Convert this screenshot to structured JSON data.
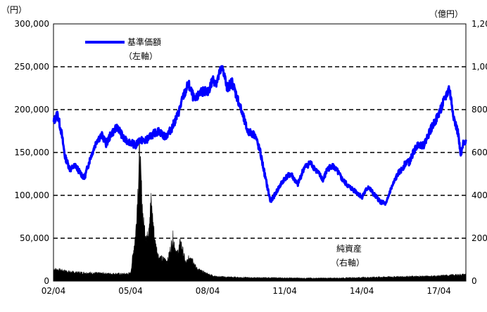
{
  "chart_data": {
    "type": "line",
    "left_unit": "（円）",
    "right_unit": "（億円）",
    "left_ylim": [
      0,
      300000
    ],
    "right_ylim": [
      0,
      1200
    ],
    "left_ticks": [
      {
        "v": 300000,
        "label": "300,000"
      },
      {
        "v": 250000,
        "label": "250,000"
      },
      {
        "v": 200000,
        "label": "200,000"
      },
      {
        "v": 150000,
        "label": "150,000"
      },
      {
        "v": 100000,
        "label": "100,000"
      },
      {
        "v": 50000,
        "label": "50,000"
      },
      {
        "v": 0,
        "label": "0"
      }
    ],
    "right_ticks": [
      {
        "v": 1200,
        "label": "1,200"
      },
      {
        "v": 1000,
        "label": "1,000"
      },
      {
        "v": 800,
        "label": "800"
      },
      {
        "v": 600,
        "label": "600"
      },
      {
        "v": 400,
        "label": "400"
      },
      {
        "v": 200,
        "label": "200"
      },
      {
        "v": 0,
        "label": "0"
      }
    ],
    "x_ticks": [
      {
        "t": 2002.25,
        "label": "02/04"
      },
      {
        "t": 2005.25,
        "label": "05/04"
      },
      {
        "t": 2008.25,
        "label": "08/04"
      },
      {
        "t": 2011.25,
        "label": "11/04"
      },
      {
        "t": 2014.25,
        "label": "14/04"
      },
      {
        "t": 2017.25,
        "label": "17/04"
      }
    ],
    "xlim": [
      2002.25,
      2018.3
    ],
    "grid": "horizontal dashed",
    "series": [
      {
        "name": "基準価額",
        "axis": "left",
        "color": "#0000ff",
        "x": [
          2002.25,
          2002.4,
          2002.55,
          2002.7,
          2002.9,
          2003.1,
          2003.25,
          2003.45,
          2003.7,
          2003.95,
          2004.15,
          2004.3,
          2004.5,
          2004.75,
          2005.0,
          2005.25,
          2005.45,
          2005.6,
          2005.8,
          2006.0,
          2006.15,
          2006.35,
          2006.6,
          2006.85,
          2007.1,
          2007.3,
          2007.5,
          2007.75,
          2008.0,
          2008.25,
          2008.45,
          2008.6,
          2008.75,
          2008.85,
          2009.0,
          2009.2,
          2009.5,
          2009.8,
          2010.1,
          2010.3,
          2010.5,
          2010.7,
          2011.0,
          2011.25,
          2011.5,
          2011.75,
          2012.0,
          2012.25,
          2012.5,
          2012.75,
          2012.9,
          2013.1,
          2013.3,
          2013.5,
          2013.75,
          2014.0,
          2014.25,
          2014.5,
          2014.75,
          2015.0,
          2015.2,
          2015.35,
          2015.5,
          2015.65,
          2015.8,
          2016.0,
          2016.1,
          2016.25,
          2016.45,
          2016.65,
          2016.9,
          2017.2,
          2017.45,
          2017.65,
          2017.85,
          2018.0,
          2018.1,
          2018.2,
          2018.3
        ],
        "values": [
          185000,
          195000,
          175000,
          145000,
          130000,
          135000,
          128000,
          120000,
          145000,
          165000,
          170000,
          160000,
          172000,
          180000,
          165000,
          162000,
          158000,
          165000,
          163000,
          168000,
          172000,
          175000,
          168000,
          178000,
          195000,
          215000,
          230000,
          210000,
          222000,
          220000,
          235000,
          232000,
          245000,
          248000,
          225000,
          232000,
          205000,
          175000,
          170000,
          150000,
          120000,
          92000,
          108000,
          120000,
          125000,
          112000,
          132000,
          138000,
          128000,
          118000,
          130000,
          135000,
          128000,
          118000,
          110000,
          105000,
          98000,
          110000,
          100000,
          92000,
          90000,
          105000,
          115000,
          125000,
          130000,
          140000,
          138000,
          150000,
          160000,
          158000,
          175000,
          192000,
          210000,
          225000,
          188000,
          172000,
          145000,
          160000,
          165000
        ]
      },
      {
        "name": "純資産",
        "axis": "right",
        "color": "#000000",
        "x": [
          2002.25,
          2003.0,
          2004.0,
          2005.0,
          2005.25,
          2005.45,
          2005.6,
          2005.75,
          2005.9,
          2006.05,
          2006.2,
          2006.35,
          2006.5,
          2006.7,
          2006.9,
          2007.05,
          2007.2,
          2007.4,
          2007.6,
          2007.8,
          2008.0,
          2008.3,
          2008.6,
          2009.0,
          2010.0,
          2011.0,
          2012.0,
          2013.0,
          2014.0,
          2015.0,
          2016.0,
          2017.0,
          2018.0,
          2018.3
        ],
        "values": [
          55,
          40,
          35,
          32,
          35,
          220,
          580,
          260,
          200,
          360,
          180,
          110,
          100,
          95,
          200,
          120,
          180,
          80,
          120,
          60,
          45,
          30,
          20,
          18,
          15,
          14,
          13,
          13,
          15,
          18,
          20,
          22,
          28,
          30
        ]
      }
    ],
    "annotations": [
      {
        "text": "（左軸）",
        "for": "基準価額"
      },
      {
        "text": "純資産",
        "for": "純資産"
      },
      {
        "text": "（右軸）",
        "for": "純資産"
      }
    ]
  },
  "legend": {
    "nav_label": "基準価額",
    "nav_axis": "（左軸）",
    "assets_label": "純資産",
    "assets_axis": "（右軸）"
  }
}
